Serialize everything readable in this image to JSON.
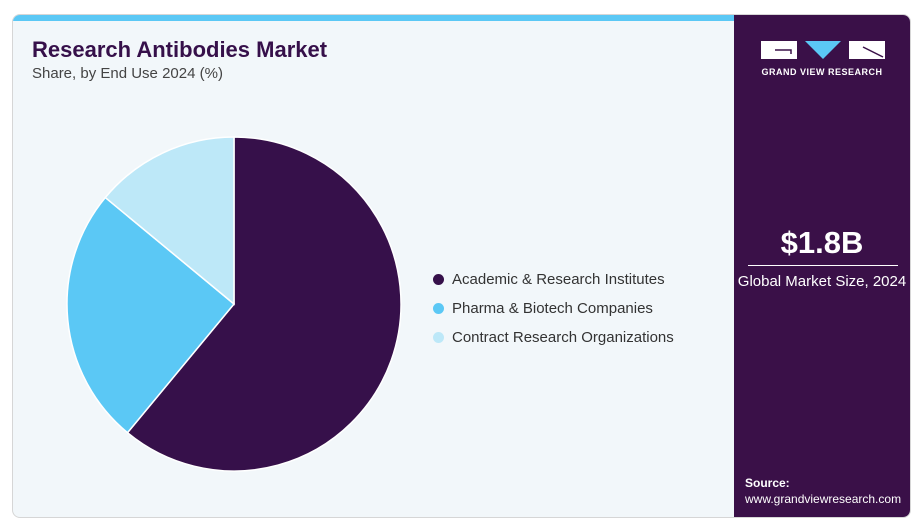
{
  "header": {
    "title": "Research Antibodies Market",
    "subtitle": "Share, by End Use 2024 (%)"
  },
  "chart_data": {
    "type": "pie",
    "title": "Research Antibodies Market",
    "subtitle": "Share, by End Use 2024 (%)",
    "legend_position": "right",
    "categories": [
      "Academic & Research Institutes",
      "Pharma & Biotech Companies",
      "Contract Research Organizations"
    ],
    "values": [
      61,
      25,
      14
    ],
    "colors": [
      "#36104a",
      "#5bc8f5",
      "#bde8f8"
    ]
  },
  "sidebar": {
    "logo_text": "GRAND VIEW RESEARCH",
    "market_size": "$1.8B",
    "market_caption": "Global Market Size, 2024",
    "source_label": "Source:",
    "source_url": "www.grandviewresearch.com"
  }
}
